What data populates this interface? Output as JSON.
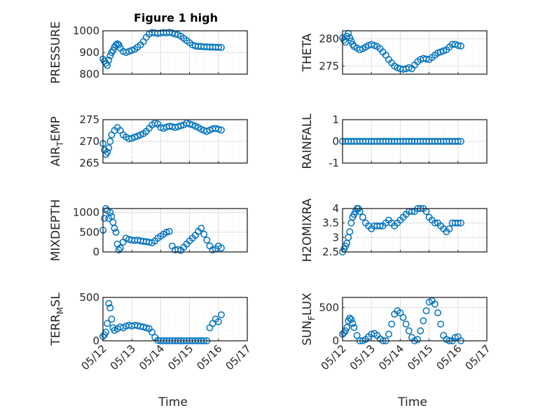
{
  "colors": {
    "series": "#0072bd",
    "axis": "#262626",
    "grid": "#d9d9d9",
    "minor_grid": "#e6e6e6"
  },
  "chart_data": [
    {
      "type": "scatter",
      "title": "Figure 1 high",
      "ylabel": "PRESSURE",
      "ylim": [
        800,
        1000
      ],
      "yticks": [
        "800",
        "900",
        "1000"
      ],
      "x": [
        0.0,
        0.05,
        0.1,
        0.15,
        0.2,
        0.25,
        0.3,
        0.35,
        0.4,
        0.45,
        0.5,
        0.55,
        0.6,
        0.7,
        0.8,
        0.9,
        1.0,
        1.1,
        1.2,
        1.3,
        1.4,
        1.5,
        1.6,
        1.7,
        1.8,
        1.9,
        2.0,
        2.1,
        2.2,
        2.3,
        2.4,
        2.5,
        2.6,
        2.7,
        2.8,
        2.9,
        3.0,
        3.1,
        3.2,
        3.3,
        3.4,
        3.5,
        3.6,
        3.7,
        3.8,
        3.9,
        4.0,
        4.1
      ],
      "y": [
        870,
        860,
        850,
        840,
        865,
        885,
        900,
        910,
        925,
        935,
        940,
        935,
        920,
        905,
        900,
        905,
        910,
        915,
        925,
        935,
        950,
        970,
        985,
        992,
        990,
        988,
        990,
        992,
        990,
        993,
        990,
        985,
        982,
        975,
        965,
        955,
        945,
        935,
        930,
        928,
        928,
        926,
        926,
        925,
        925,
        924,
        924,
        923
      ]
    },
    {
      "type": "scatter",
      "ylabel": "THETA",
      "ylim": [
        273.5,
        281.5
      ],
      "yticks": [
        "275",
        "280"
      ],
      "x": [
        0.0,
        0.05,
        0.1,
        0.15,
        0.2,
        0.25,
        0.3,
        0.35,
        0.4,
        0.5,
        0.6,
        0.7,
        0.8,
        0.9,
        1.0,
        1.1,
        1.2,
        1.3,
        1.4,
        1.5,
        1.6,
        1.7,
        1.8,
        1.9,
        2.0,
        2.1,
        2.2,
        2.3,
        2.4,
        2.5,
        2.6,
        2.7,
        2.8,
        2.9,
        3.0,
        3.1,
        3.2,
        3.3,
        3.4,
        3.5,
        3.6,
        3.7,
        3.8,
        3.9,
        4.0,
        4.1
      ],
      "y": [
        280.2,
        279.8,
        279.4,
        280.5,
        281.0,
        280.2,
        279.6,
        279.0,
        278.6,
        278.3,
        278.0,
        278.2,
        278.5,
        278.8,
        279.0,
        278.8,
        278.6,
        278.2,
        277.6,
        277.0,
        276.2,
        275.6,
        275.0,
        274.7,
        274.5,
        274.4,
        274.5,
        274.7,
        274.5,
        275.2,
        275.8,
        276.2,
        276.4,
        276.3,
        276.2,
        276.6,
        277.0,
        277.4,
        277.6,
        277.8,
        278.0,
        278.5,
        279.0,
        279.0,
        278.8,
        278.7
      ]
    },
    {
      "type": "scatter",
      "ylabel": "AIR",
      "ylabel_sub": "T",
      "ylabel_suffix": "EMP",
      "ylim": [
        265,
        275
      ],
      "yticks": [
        "265",
        "270",
        "275"
      ],
      "x": [
        0.0,
        0.05,
        0.1,
        0.15,
        0.2,
        0.25,
        0.3,
        0.4,
        0.5,
        0.6,
        0.7,
        0.8,
        0.9,
        1.0,
        1.1,
        1.2,
        1.3,
        1.4,
        1.5,
        1.6,
        1.7,
        1.8,
        1.9,
        2.0,
        2.1,
        2.2,
        2.3,
        2.4,
        2.5,
        2.6,
        2.7,
        2.8,
        2.9,
        3.0,
        3.1,
        3.2,
        3.3,
        3.4,
        3.5,
        3.6,
        3.7,
        3.8,
        3.9,
        4.0,
        4.1
      ],
      "y": [
        269.5,
        268.0,
        267.0,
        267.5,
        268.5,
        270.0,
        271.5,
        272.5,
        273.2,
        272.5,
        271.5,
        271.0,
        270.6,
        270.7,
        271.0,
        271.2,
        271.5,
        271.8,
        272.3,
        273.0,
        273.8,
        274.2,
        274.0,
        273.2,
        273.0,
        273.3,
        273.5,
        273.4,
        273.2,
        273.4,
        273.6,
        273.8,
        274.2,
        274.0,
        273.8,
        273.5,
        273.2,
        272.8,
        272.5,
        272.3,
        272.6,
        272.9,
        273.0,
        272.8,
        272.6
      ]
    },
    {
      "type": "scatter",
      "ylabel": "RAINFALL",
      "ylim": [
        -1,
        1
      ],
      "yticks": [
        "-1",
        "0",
        "1"
      ],
      "x": [
        0.0,
        0.1,
        0.2,
        0.3,
        0.4,
        0.5,
        0.6,
        0.7,
        0.8,
        0.9,
        1.0,
        1.1,
        1.2,
        1.3,
        1.4,
        1.5,
        1.6,
        1.7,
        1.8,
        1.9,
        2.0,
        2.1,
        2.2,
        2.3,
        2.4,
        2.5,
        2.6,
        2.7,
        2.8,
        2.9,
        3.0,
        3.1,
        3.2,
        3.3,
        3.4,
        3.5,
        3.6,
        3.7,
        3.8,
        3.9,
        4.0,
        4.1
      ],
      "y": [
        0,
        0,
        0,
        0,
        0,
        0,
        0,
        0,
        0,
        0,
        0,
        0,
        0,
        0,
        0,
        0,
        0,
        0,
        0,
        0,
        0,
        0,
        0,
        0,
        0,
        0,
        0,
        0,
        0,
        0,
        0,
        0,
        0,
        0,
        0,
        0,
        0,
        0,
        0,
        0,
        0,
        0
      ]
    },
    {
      "type": "scatter",
      "ylabel": "MIXDEPTH",
      "ylim": [
        0,
        1100
      ],
      "yticks": [
        "0",
        "500",
        "1000"
      ],
      "x": [
        0.0,
        0.05,
        0.1,
        0.15,
        0.2,
        0.25,
        0.3,
        0.35,
        0.4,
        0.45,
        0.5,
        0.55,
        0.6,
        0.7,
        0.8,
        0.9,
        1.0,
        1.1,
        1.2,
        1.3,
        1.4,
        1.5,
        1.6,
        1.7,
        1.8,
        1.9,
        2.0,
        2.1,
        2.2,
        2.3,
        2.4,
        2.5,
        2.6,
        2.7,
        2.8,
        2.9,
        3.0,
        3.1,
        3.2,
        3.3,
        3.4,
        3.5,
        3.6,
        3.7,
        3.8,
        3.9,
        4.0,
        4.1
      ],
      "y": [
        550,
        850,
        1100,
        1050,
        850,
        1000,
        900,
        750,
        600,
        500,
        200,
        50,
        100,
        250,
        350,
        320,
        300,
        290,
        300,
        280,
        270,
        260,
        250,
        230,
        280,
        350,
        400,
        450,
        500,
        520,
        150,
        50,
        60,
        40,
        120,
        200,
        280,
        350,
        420,
        520,
        600,
        450,
        300,
        150,
        50,
        80,
        150,
        100
      ]
    },
    {
      "type": "scatter",
      "ylabel": "H2OMIXRA",
      "ylim": [
        2.5,
        4
      ],
      "yticks": [
        "2.5",
        "3",
        "3.5",
        "4"
      ],
      "x": [
        0.0,
        0.05,
        0.1,
        0.15,
        0.2,
        0.25,
        0.3,
        0.35,
        0.4,
        0.45,
        0.5,
        0.55,
        0.6,
        0.7,
        0.8,
        0.9,
        1.0,
        1.1,
        1.2,
        1.3,
        1.4,
        1.5,
        1.6,
        1.7,
        1.8,
        1.9,
        2.0,
        2.1,
        2.2,
        2.3,
        2.4,
        2.5,
        2.6,
        2.7,
        2.8,
        2.9,
        3.0,
        3.1,
        3.2,
        3.3,
        3.4,
        3.5,
        3.6,
        3.7,
        3.8,
        3.9,
        4.0,
        4.1
      ],
      "y": [
        2.5,
        2.6,
        2.7,
        2.8,
        3.0,
        3.2,
        3.5,
        3.7,
        3.8,
        3.9,
        4.0,
        4.0,
        3.9,
        3.7,
        3.5,
        3.4,
        3.3,
        3.4,
        3.4,
        3.4,
        3.4,
        3.5,
        3.6,
        3.5,
        3.4,
        3.5,
        3.6,
        3.7,
        3.8,
        3.9,
        3.9,
        3.9,
        4.0,
        4.0,
        4.0,
        3.9,
        3.7,
        3.6,
        3.5,
        3.5,
        3.4,
        3.3,
        3.2,
        3.3,
        3.5,
        3.5,
        3.5,
        3.5
      ]
    },
    {
      "type": "scatter",
      "ylabel": "TERR",
      "ylabel_sub": "M",
      "ylabel_suffix": "SL",
      "xlabel": "Time",
      "ylim": [
        0,
        500
      ],
      "yticks": [
        "0",
        "500"
      ],
      "xlim": [
        0,
        5
      ],
      "xticklabels": [
        "05/12",
        "05/13",
        "05/14",
        "05/15",
        "05/16",
        "05/17"
      ],
      "x": [
        0.0,
        0.05,
        0.1,
        0.15,
        0.2,
        0.25,
        0.3,
        0.35,
        0.4,
        0.5,
        0.6,
        0.7,
        0.8,
        0.9,
        1.0,
        1.1,
        1.2,
        1.3,
        1.4,
        1.5,
        1.6,
        1.7,
        1.8,
        1.9,
        2.0,
        2.1,
        2.2,
        2.3,
        2.4,
        2.5,
        2.6,
        2.7,
        2.8,
        2.9,
        3.0,
        3.1,
        3.2,
        3.3,
        3.4,
        3.5,
        3.6,
        3.7,
        3.8,
        3.9,
        4.0,
        4.1
      ],
      "y": [
        50,
        70,
        100,
        200,
        430,
        380,
        250,
        150,
        120,
        140,
        160,
        150,
        170,
        180,
        170,
        180,
        175,
        165,
        160,
        150,
        140,
        100,
        40,
        5,
        0,
        0,
        0,
        0,
        0,
        0,
        0,
        0,
        0,
        0,
        0,
        0,
        0,
        0,
        0,
        0,
        0,
        150,
        200,
        250,
        220,
        300
      ]
    },
    {
      "type": "scatter",
      "ylabel": "SUN",
      "ylabel_sub": "F",
      "ylabel_suffix": "LUX",
      "xlabel": "Time",
      "ylim": [
        0,
        650
      ],
      "yticks": [
        "0",
        "500"
      ],
      "xlim": [
        0,
        5
      ],
      "xticklabels": [
        "05/12",
        "05/13",
        "05/14",
        "05/15",
        "05/16",
        "05/17"
      ],
      "x": [
        0.0,
        0.05,
        0.1,
        0.15,
        0.2,
        0.25,
        0.3,
        0.35,
        0.4,
        0.5,
        0.6,
        0.7,
        0.8,
        0.9,
        1.0,
        1.1,
        1.2,
        1.3,
        1.4,
        1.5,
        1.6,
        1.7,
        1.8,
        1.9,
        2.0,
        2.1,
        2.2,
        2.3,
        2.4,
        2.5,
        2.6,
        2.7,
        2.8,
        2.9,
        3.0,
        3.1,
        3.2,
        3.3,
        3.4,
        3.5,
        3.6,
        3.7,
        3.8,
        3.9,
        4.0,
        4.1
      ],
      "y": [
        100,
        120,
        150,
        200,
        300,
        340,
        320,
        260,
        200,
        80,
        0,
        0,
        20,
        60,
        100,
        110,
        80,
        30,
        0,
        0,
        100,
        250,
        400,
        450,
        420,
        350,
        250,
        150,
        50,
        0,
        20,
        150,
        300,
        450,
        580,
        600,
        550,
        420,
        250,
        80,
        20,
        0,
        0,
        50,
        60,
        0
      ]
    }
  ]
}
